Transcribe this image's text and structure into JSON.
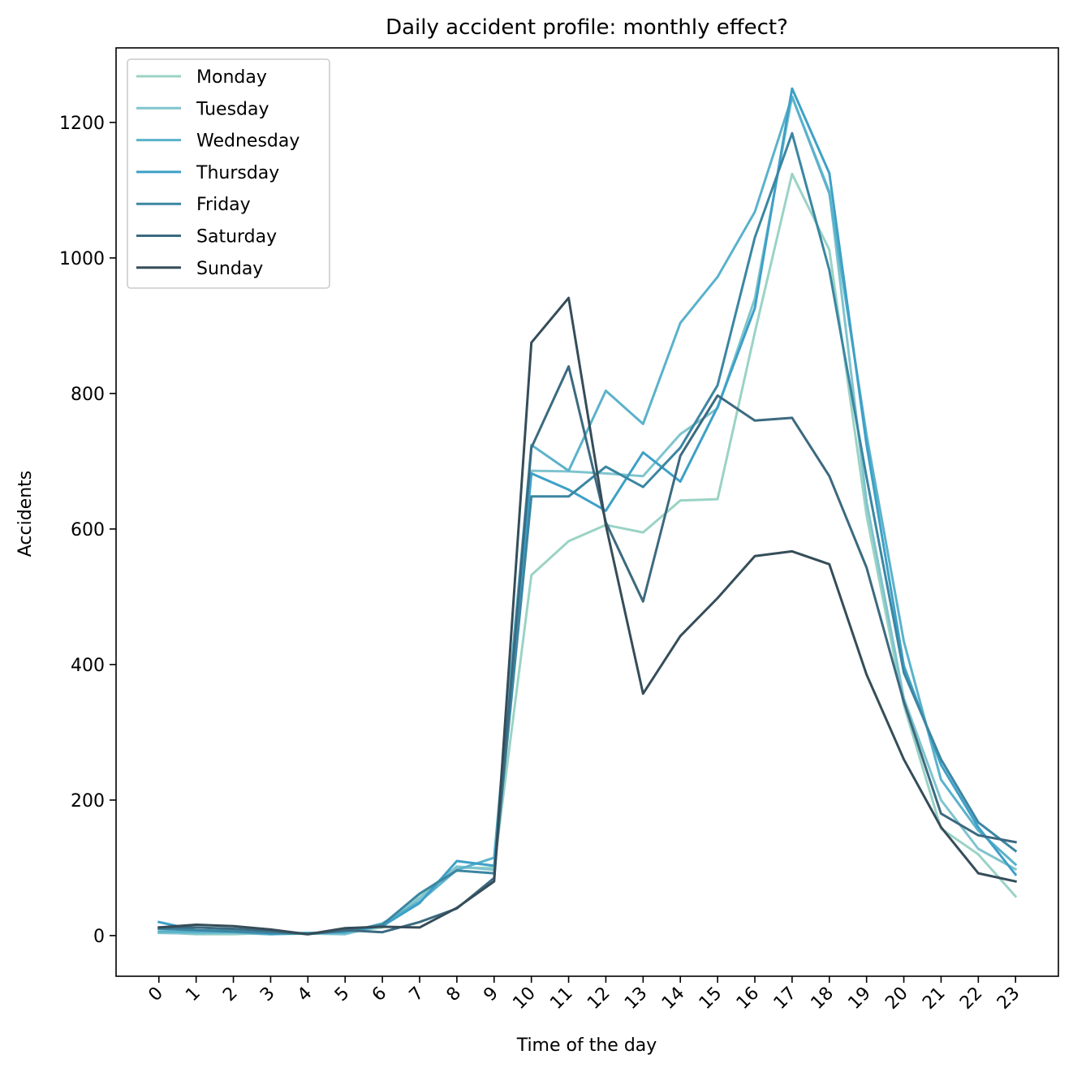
{
  "chart_data": {
    "type": "line",
    "title": "Daily accident profile: monthly effect?",
    "xlabel": "Time of the day",
    "ylabel": "Accidents",
    "x": [
      "0",
      "1",
      "2",
      "3",
      "4",
      "5",
      "6",
      "7",
      "8",
      "9",
      "10",
      "11",
      "12",
      "13",
      "14",
      "15",
      "16",
      "17",
      "18",
      "19",
      "20",
      "21",
      "22",
      "23"
    ],
    "ylim": [
      -60,
      1310
    ],
    "yticks": [
      0,
      200,
      400,
      600,
      800,
      1000,
      1200
    ],
    "legend": "top-left",
    "grid": false,
    "series": [
      {
        "name": "Monday",
        "color": "#9ad3c5",
        "values": [
          5,
          2,
          2,
          4,
          4,
          5,
          12,
          60,
          100,
          100,
          532,
          582,
          606,
          595,
          642,
          644,
          890,
          1124,
          1012,
          620,
          340,
          158,
          120,
          58
        ]
      },
      {
        "name": "Tuesday",
        "color": "#7fc4ce",
        "values": [
          4,
          3,
          4,
          2,
          3,
          2,
          15,
          55,
          102,
          97,
          686,
          685,
          682,
          678,
          740,
          778,
          940,
          1238,
          1098,
          640,
          350,
          200,
          128,
          98
        ]
      },
      {
        "name": "Wednesday",
        "color": "#5ab2cb",
        "values": [
          6,
          5,
          5,
          2,
          4,
          4,
          18,
          50,
          97,
          115,
          724,
          686,
          804,
          755,
          904,
          972,
          1068,
          1238,
          1095,
          738,
          434,
          230,
          155,
          105
        ]
      },
      {
        "name": "Thursday",
        "color": "#3ea0c7",
        "values": [
          20,
          8,
          7,
          3,
          3,
          6,
          14,
          48,
          110,
          103,
          682,
          658,
          627,
          713,
          670,
          780,
          926,
          1250,
          1125,
          724,
          398,
          252,
          160,
          90
        ]
      },
      {
        "name": "Friday",
        "color": "#3b86a2",
        "values": [
          10,
          8,
          6,
          4,
          3,
          7,
          16,
          62,
          96,
          92,
          648,
          648,
          692,
          662,
          720,
          812,
          1030,
          1184,
          982,
          676,
          388,
          260,
          167,
          125
        ]
      },
      {
        "name": "Saturday",
        "color": "#3c6a80",
        "values": [
          12,
          12,
          10,
          7,
          2,
          8,
          5,
          20,
          40,
          85,
          720,
          840,
          610,
          493,
          708,
          797,
          760,
          764,
          678,
          543,
          345,
          180,
          148,
          138
        ]
      },
      {
        "name": "Sunday",
        "color": "#354d59",
        "values": [
          12,
          16,
          14,
          9,
          2,
          11,
          13,
          12,
          41,
          80,
          875,
          941,
          606,
          357,
          442,
          498,
          560,
          567,
          548,
          385,
          260,
          160,
          92,
          80
        ]
      }
    ]
  }
}
